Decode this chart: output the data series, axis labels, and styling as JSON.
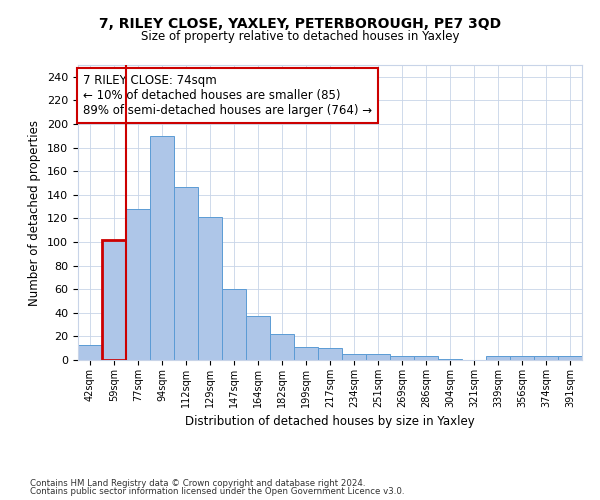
{
  "title1": "7, RILEY CLOSE, YAXLEY, PETERBOROUGH, PE7 3QD",
  "title2": "Size of property relative to detached houses in Yaxley",
  "xlabel": "Distribution of detached houses by size in Yaxley",
  "ylabel": "Number of detached properties",
  "categories": [
    "42sqm",
    "59sqm",
    "77sqm",
    "94sqm",
    "112sqm",
    "129sqm",
    "147sqm",
    "164sqm",
    "182sqm",
    "199sqm",
    "217sqm",
    "234sqm",
    "251sqm",
    "269sqm",
    "286sqm",
    "304sqm",
    "321sqm",
    "339sqm",
    "356sqm",
    "374sqm",
    "391sqm"
  ],
  "values": [
    13,
    102,
    128,
    190,
    147,
    121,
    60,
    37,
    22,
    11,
    10,
    5,
    5,
    3,
    3,
    1,
    0,
    3,
    3,
    3,
    3
  ],
  "bar_color": "#aec6e8",
  "bar_edge_color": "#5b9bd5",
  "highlight_bar_index": 1,
  "highlight_bar_edge_color": "#cc0000",
  "annotation_box_text": "7 RILEY CLOSE: 74sqm\n← 10% of detached houses are smaller (85)\n89% of semi-detached houses are larger (764) →",
  "vline_color": "#cc0000",
  "ylim": [
    0,
    250
  ],
  "yticks": [
    0,
    20,
    40,
    60,
    80,
    100,
    120,
    140,
    160,
    180,
    200,
    220,
    240
  ],
  "grid_color": "#c8d4e8",
  "background_color": "#ffffff",
  "footer1": "Contains HM Land Registry data © Crown copyright and database right 2024.",
  "footer2": "Contains public sector information licensed under the Open Government Licence v3.0."
}
